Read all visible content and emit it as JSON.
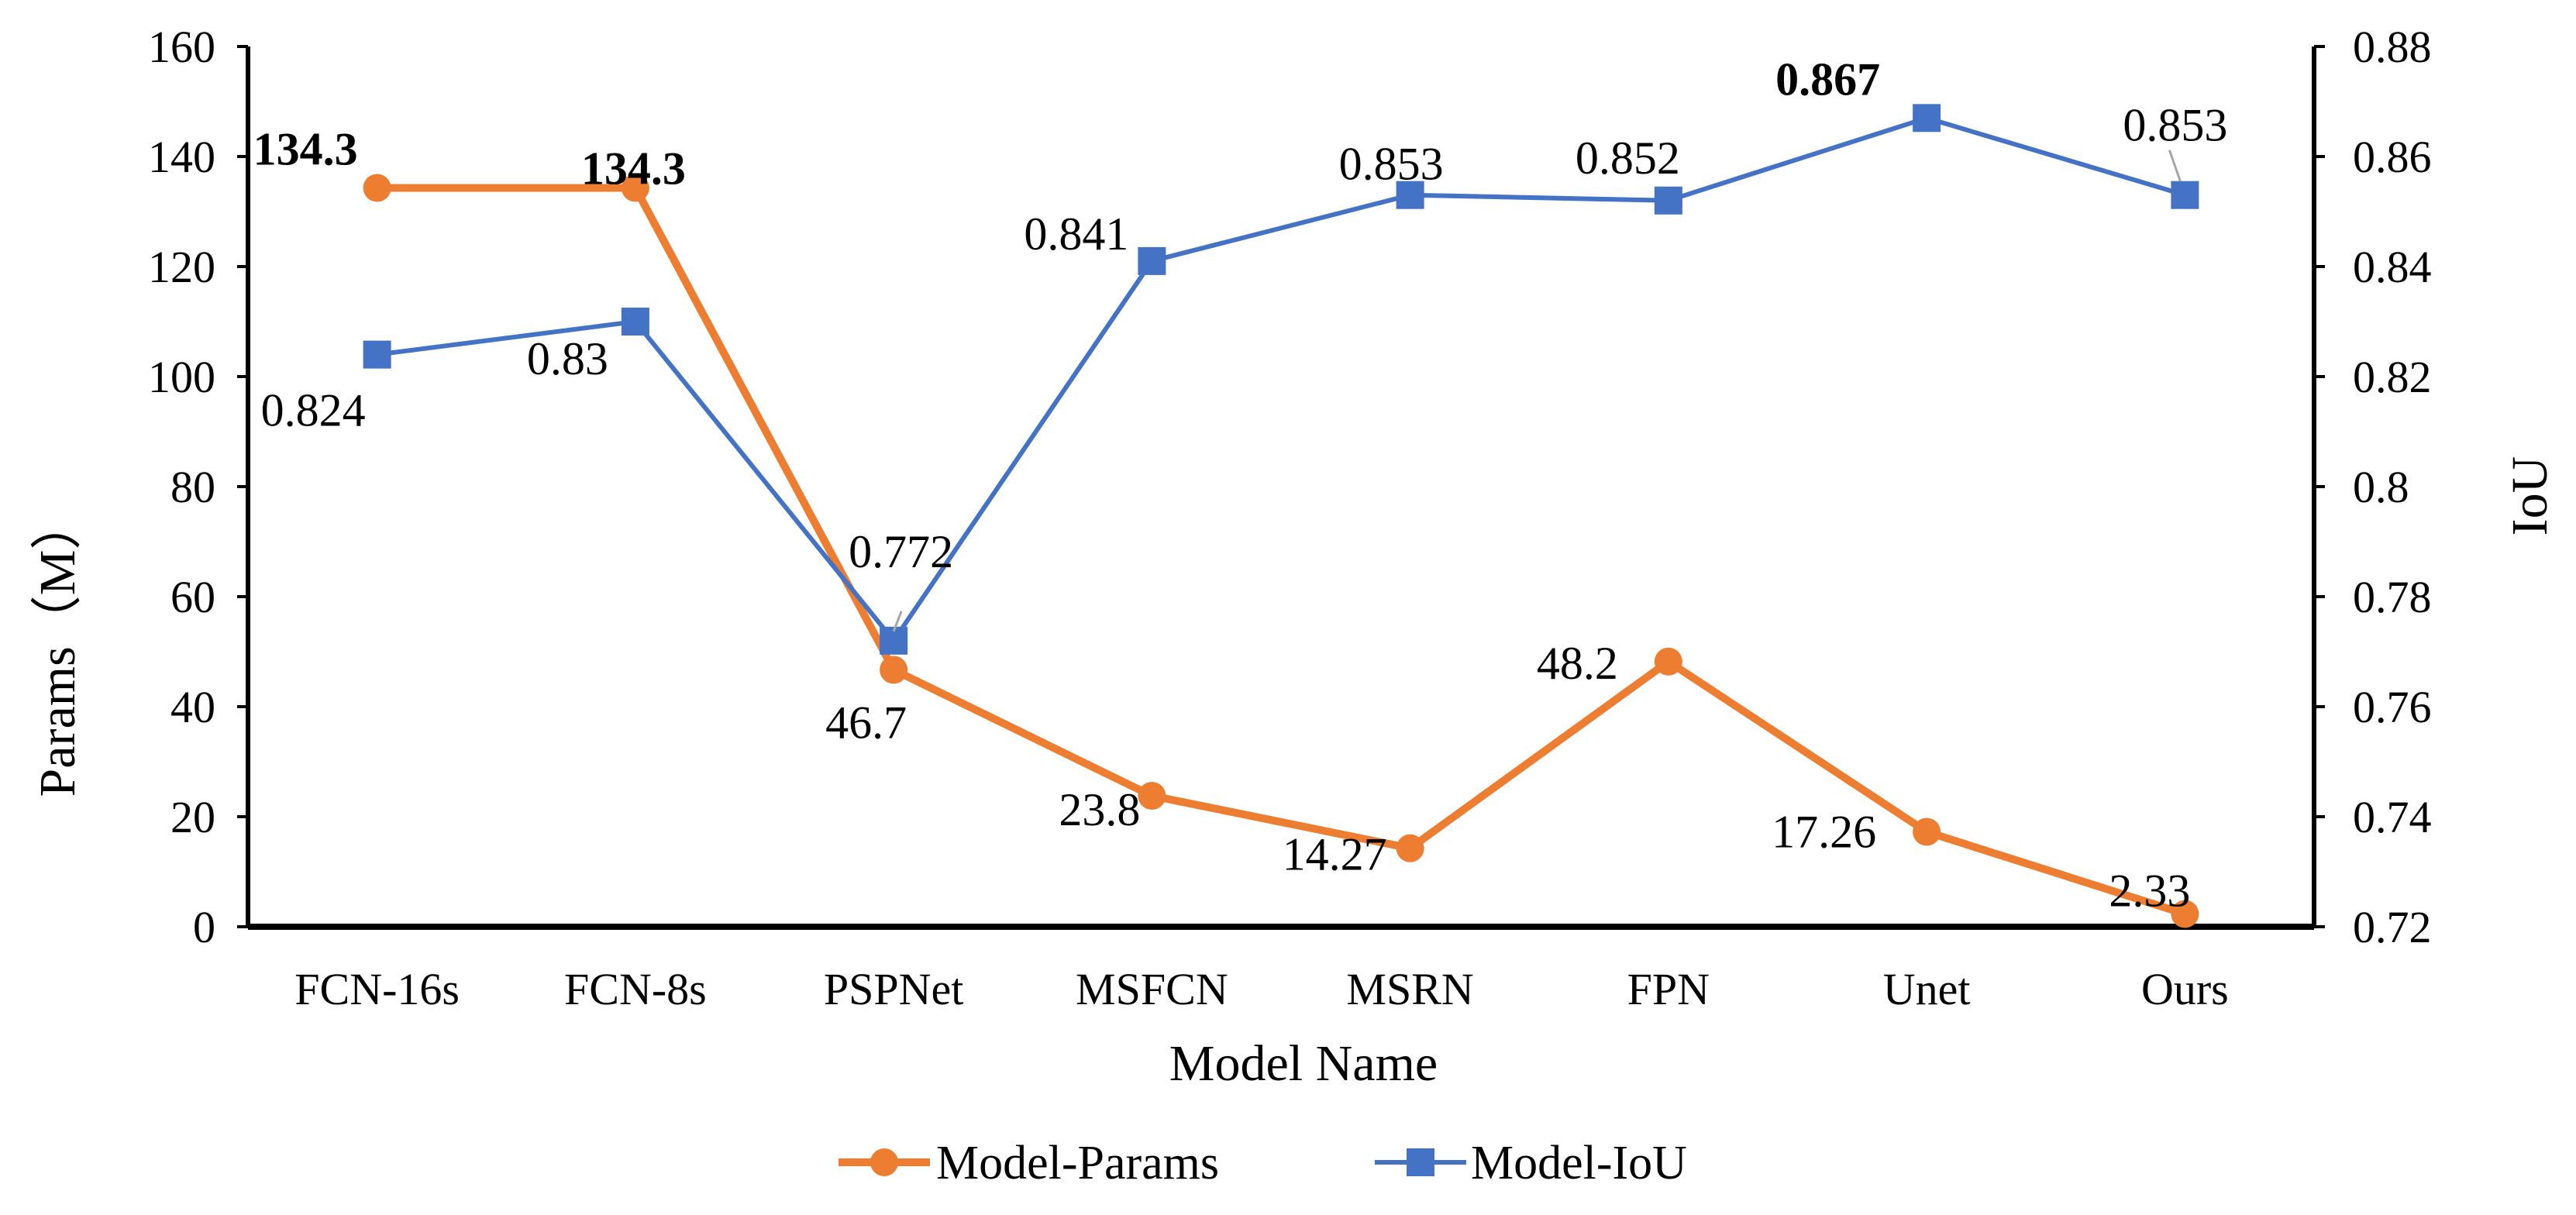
{
  "chart_data": {
    "type": "line",
    "categories": [
      "FCN-16s",
      "FCN-8s",
      "PSPNet",
      "MSFCN",
      "MSRN",
      "FPN",
      "Unet",
      "Ours"
    ],
    "xlabel": "Model Name",
    "ylabel_left": "Params（M）",
    "ylabel_right": "IoU",
    "ylim_left": [
      0,
      160
    ],
    "ylim_right": [
      0.72,
      0.88
    ],
    "yticks_left": [
      "0",
      "20",
      "40",
      "60",
      "80",
      "100",
      "120",
      "140",
      "160"
    ],
    "yticks_right": [
      "0.72",
      "0.74",
      "0.76",
      "0.78",
      "0.8",
      "0.82",
      "0.84",
      "0.86",
      "0.88"
    ],
    "grid": false,
    "legend_position": "bottom",
    "series": [
      {
        "name": "Model-Params",
        "axis": "left",
        "color": "#ED7D31",
        "marker": "circle",
        "values": [
          134.3,
          134.3,
          46.7,
          23.8,
          14.27,
          48.2,
          17.26,
          2.33
        ],
        "labels": [
          "134.3",
          "134.3",
          "46.7",
          "23.8",
          "14.27",
          "48.2",
          "17.26",
          "2.33"
        ],
        "bold": [
          true,
          true,
          false,
          false,
          false,
          false,
          false,
          false
        ]
      },
      {
        "name": "Model-IoU",
        "axis": "right",
        "color": "#4472C4",
        "marker": "square",
        "values": [
          0.824,
          0.83,
          0.772,
          0.841,
          0.853,
          0.852,
          0.867,
          0.853
        ],
        "labels": [
          "0.824",
          "0.83",
          "0.772",
          "0.841",
          "0.853",
          "0.852",
          "0.867",
          "0.853"
        ],
        "bold": [
          false,
          false,
          false,
          false,
          false,
          false,
          true,
          false
        ]
      }
    ]
  }
}
